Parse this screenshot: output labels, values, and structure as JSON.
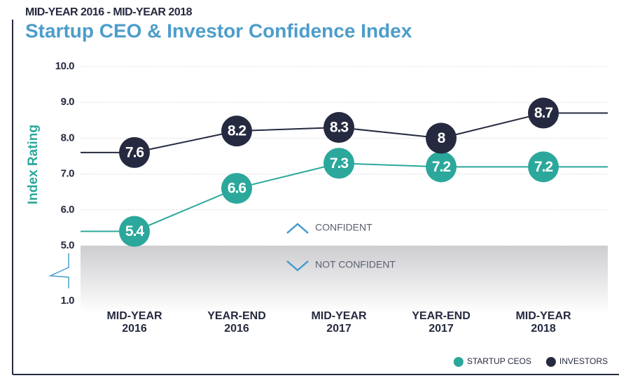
{
  "chart_data": {
    "type": "line",
    "subtitle": "MID-YEAR 2016 - MID-YEAR 2018",
    "title": "Startup CEO & Investor Confidence Index",
    "y_label": "Index Rating",
    "categories": [
      [
        "MID-YEAR",
        "2016"
      ],
      [
        "YEAR-END",
        "2016"
      ],
      [
        "MID-YEAR",
        "2017"
      ],
      [
        "YEAR-END",
        "2017"
      ],
      [
        "MID-YEAR",
        "2018"
      ]
    ],
    "series": [
      {
        "name": "STARTUP CEOS",
        "color": "#2ba89b",
        "values": [
          5.4,
          6.6,
          7.3,
          7.2,
          7.2
        ]
      },
      {
        "name": "INVESTORS",
        "color": "#262a40",
        "values": [
          7.6,
          8.2,
          8.3,
          8,
          8.7
        ]
      }
    ],
    "ylim": [
      1,
      10
    ],
    "yticks": [
      {
        "value": 1,
        "label": "1.0"
      },
      {
        "value": 5,
        "label": "5.0"
      },
      {
        "value": 6,
        "label": "6.0"
      },
      {
        "value": 7,
        "label": "7.0"
      },
      {
        "value": 8,
        "label": "8.0"
      },
      {
        "value": 9,
        "label": "9.0"
      },
      {
        "value": 10,
        "label": "10.0"
      }
    ],
    "axis_break": true,
    "grid": true,
    "annotations": [
      "CONFIDENT",
      "NOT CONFIDENT"
    ],
    "legend": "bottom-right"
  }
}
